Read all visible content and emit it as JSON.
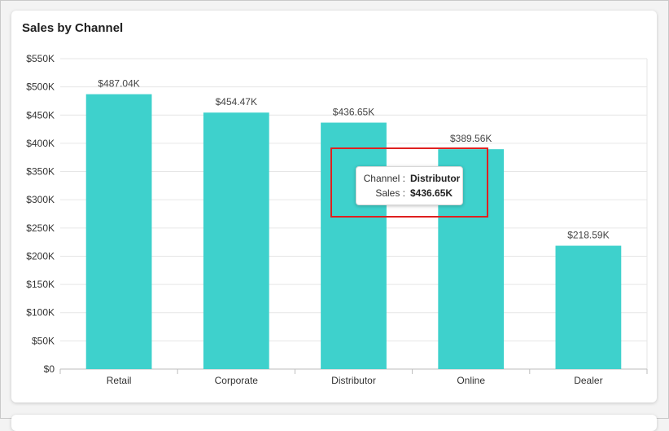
{
  "card": {
    "title": "Sales by Channel"
  },
  "tooltip": {
    "channel_label": "Channel :",
    "channel_value": "Distributor",
    "sales_label": "Sales :",
    "sales_value": "$436.65K"
  },
  "colors": {
    "bar": "#3ed1cc",
    "grid": "#e6e6e6",
    "axis": "#bdbdbd",
    "highlight": "#e02020"
  },
  "chart_data": {
    "type": "bar",
    "title": "Sales by Channel",
    "xlabel": "",
    "ylabel": "",
    "categories": [
      "Retail",
      "Corporate",
      "Distributor",
      "Online",
      "Dealer"
    ],
    "values": [
      487.04,
      454.47,
      436.65,
      389.56,
      218.59
    ],
    "data_labels": [
      "$487.04K",
      "$454.47K",
      "$436.65K",
      "$389.56K",
      "$218.59K"
    ],
    "ylim": [
      0,
      550
    ],
    "yticks": [
      0,
      50,
      100,
      150,
      200,
      250,
      300,
      350,
      400,
      450,
      500,
      550
    ],
    "ytick_labels": [
      "$0",
      "$50K",
      "$100K",
      "$150K",
      "$200K",
      "$250K",
      "$300K",
      "$350K",
      "$400K",
      "$450K",
      "$500K",
      "$550K"
    ],
    "grid": true,
    "legend": "none"
  }
}
